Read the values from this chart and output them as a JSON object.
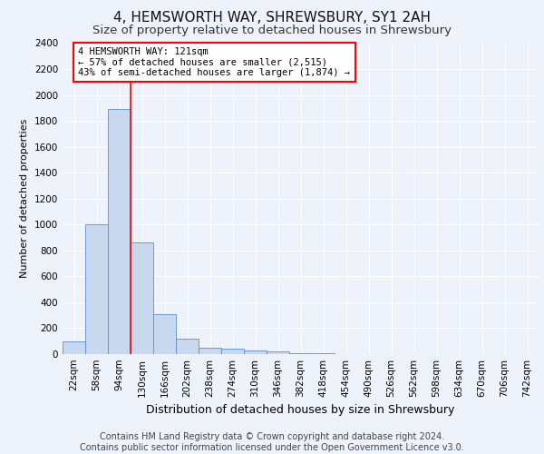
{
  "title": "4, HEMSWORTH WAY, SHREWSBURY, SY1 2AH",
  "subtitle": "Size of property relative to detached houses in Shrewsbury",
  "xlabel": "Distribution of detached houses by size in Shrewsbury",
  "ylabel": "Number of detached properties",
  "bin_labels": [
    "22sqm",
    "58sqm",
    "94sqm",
    "130sqm",
    "166sqm",
    "202sqm",
    "238sqm",
    "274sqm",
    "310sqm",
    "346sqm",
    "382sqm",
    "418sqm",
    "454sqm",
    "490sqm",
    "526sqm",
    "562sqm",
    "598sqm",
    "634sqm",
    "670sqm",
    "706sqm",
    "742sqm"
  ],
  "bar_values": [
    100,
    1005,
    1895,
    860,
    310,
    120,
    50,
    40,
    30,
    20,
    10,
    5,
    3,
    2,
    2,
    1,
    1,
    1,
    0,
    0,
    0
  ],
  "bar_color": "#c8d8ee",
  "bar_edge_color": "#5b8dd9",
  "annotation_text": "4 HEMSWORTH WAY: 121sqm\n← 57% of detached houses are smaller (2,515)\n43% of semi-detached houses are larger (1,874) →",
  "annotation_box_color": "white",
  "annotation_box_edge_color": "red",
  "ylim": [
    0,
    2400
  ],
  "yticks": [
    0,
    200,
    400,
    600,
    800,
    1000,
    1200,
    1400,
    1600,
    1800,
    2000,
    2200,
    2400
  ],
  "footer": "Contains HM Land Registry data © Crown copyright and database right 2024.\nContains public sector information licensed under the Open Government Licence v3.0.",
  "bg_color": "#eef2fa",
  "grid_color": "#ffffff",
  "title_fontsize": 11,
  "subtitle_fontsize": 9.5,
  "ylabel_fontsize": 8,
  "xlabel_fontsize": 9,
  "tick_fontsize": 7.5,
  "footer_fontsize": 7,
  "annot_fontsize": 7.5
}
